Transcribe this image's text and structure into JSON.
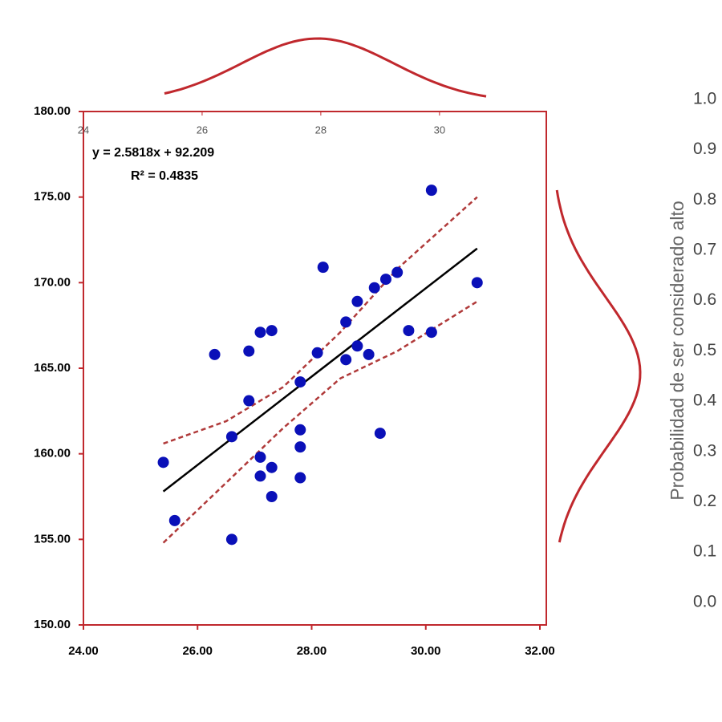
{
  "chart_data": {
    "type": "scatter",
    "x": [
      25.4,
      25.6,
      26.3,
      26.6,
      26.6,
      26.9,
      26.9,
      27.1,
      27.3,
      27.1,
      27.1,
      27.3,
      27.3,
      27.8,
      27.8,
      27.8,
      27.8,
      28.1,
      28.2,
      28.6,
      28.6,
      28.8,
      28.8,
      29.0,
      29.1,
      29.3,
      29.5,
      29.2,
      29.7,
      30.1,
      30.1,
      30.9
    ],
    "values": [
      159.5,
      156.1,
      165.8,
      155.0,
      161.0,
      166.0,
      163.1,
      167.1,
      167.2,
      159.8,
      158.7,
      159.2,
      157.5,
      164.2,
      161.4,
      160.4,
      158.6,
      165.9,
      170.9,
      167.7,
      165.5,
      168.9,
      166.3,
      165.8,
      169.7,
      170.2,
      170.6,
      161.2,
      167.2,
      167.1,
      175.4,
      170.0
    ],
    "color": "#0a10b8",
    "fit": {
      "x": [
        25.4,
        30.9
      ],
      "y": [
        157.8,
        172.0
      ],
      "color": "#000000"
    },
    "upper_band": {
      "x": [
        25.4,
        26.5,
        27.5,
        28.5,
        29.5,
        30.9
      ],
      "y": [
        160.6,
        161.9,
        163.9,
        167.1,
        170.8,
        175.0
      ],
      "color": "#b03a3a"
    },
    "lower_band": {
      "x": [
        25.4,
        26.5,
        27.5,
        28.5,
        29.5,
        30.9
      ],
      "y": [
        154.8,
        158.3,
        161.5,
        164.4,
        166.0,
        168.9
      ],
      "color": "#b03a3a"
    },
    "annotations": [
      "y = 2.5818x + 92.209",
      "R² = 0.4835"
    ],
    "y2label": "Probabilidad de ser considerado alto",
    "xlim": [
      24,
      32
    ],
    "xticks": [
      {
        "value": 24,
        "label": "24.00"
      },
      {
        "value": 26,
        "label": "26.00"
      },
      {
        "value": 28,
        "label": "28.00"
      },
      {
        "value": 30,
        "label": "30.00"
      },
      {
        "value": 32,
        "label": "32.00"
      }
    ],
    "ylim": [
      150,
      180
    ],
    "yticks": [
      {
        "value": 150,
        "label": "150.00"
      },
      {
        "value": 155,
        "label": "155.00"
      },
      {
        "value": 160,
        "label": "160.00"
      },
      {
        "value": 165,
        "label": "165.00"
      },
      {
        "value": 170,
        "label": "170.00"
      },
      {
        "value": 175,
        "label": "175.00"
      },
      {
        "value": 180,
        "label": "180.00"
      }
    ],
    "x2lim": [
      24,
      31.8
    ],
    "x2ticks": [
      24,
      26,
      28,
      30
    ],
    "y2lim": [
      -0.045,
      0.976
    ],
    "y2ticks": [
      {
        "value": 1,
        "label": "1.0"
      },
      0.9,
      0.8,
      0.7,
      0.6,
      0.5,
      0.4,
      0.3,
      0.2,
      0.1,
      {
        "value": 0,
        "label": "0.0"
      }
    ],
    "frame_color": "#c0282d"
  }
}
